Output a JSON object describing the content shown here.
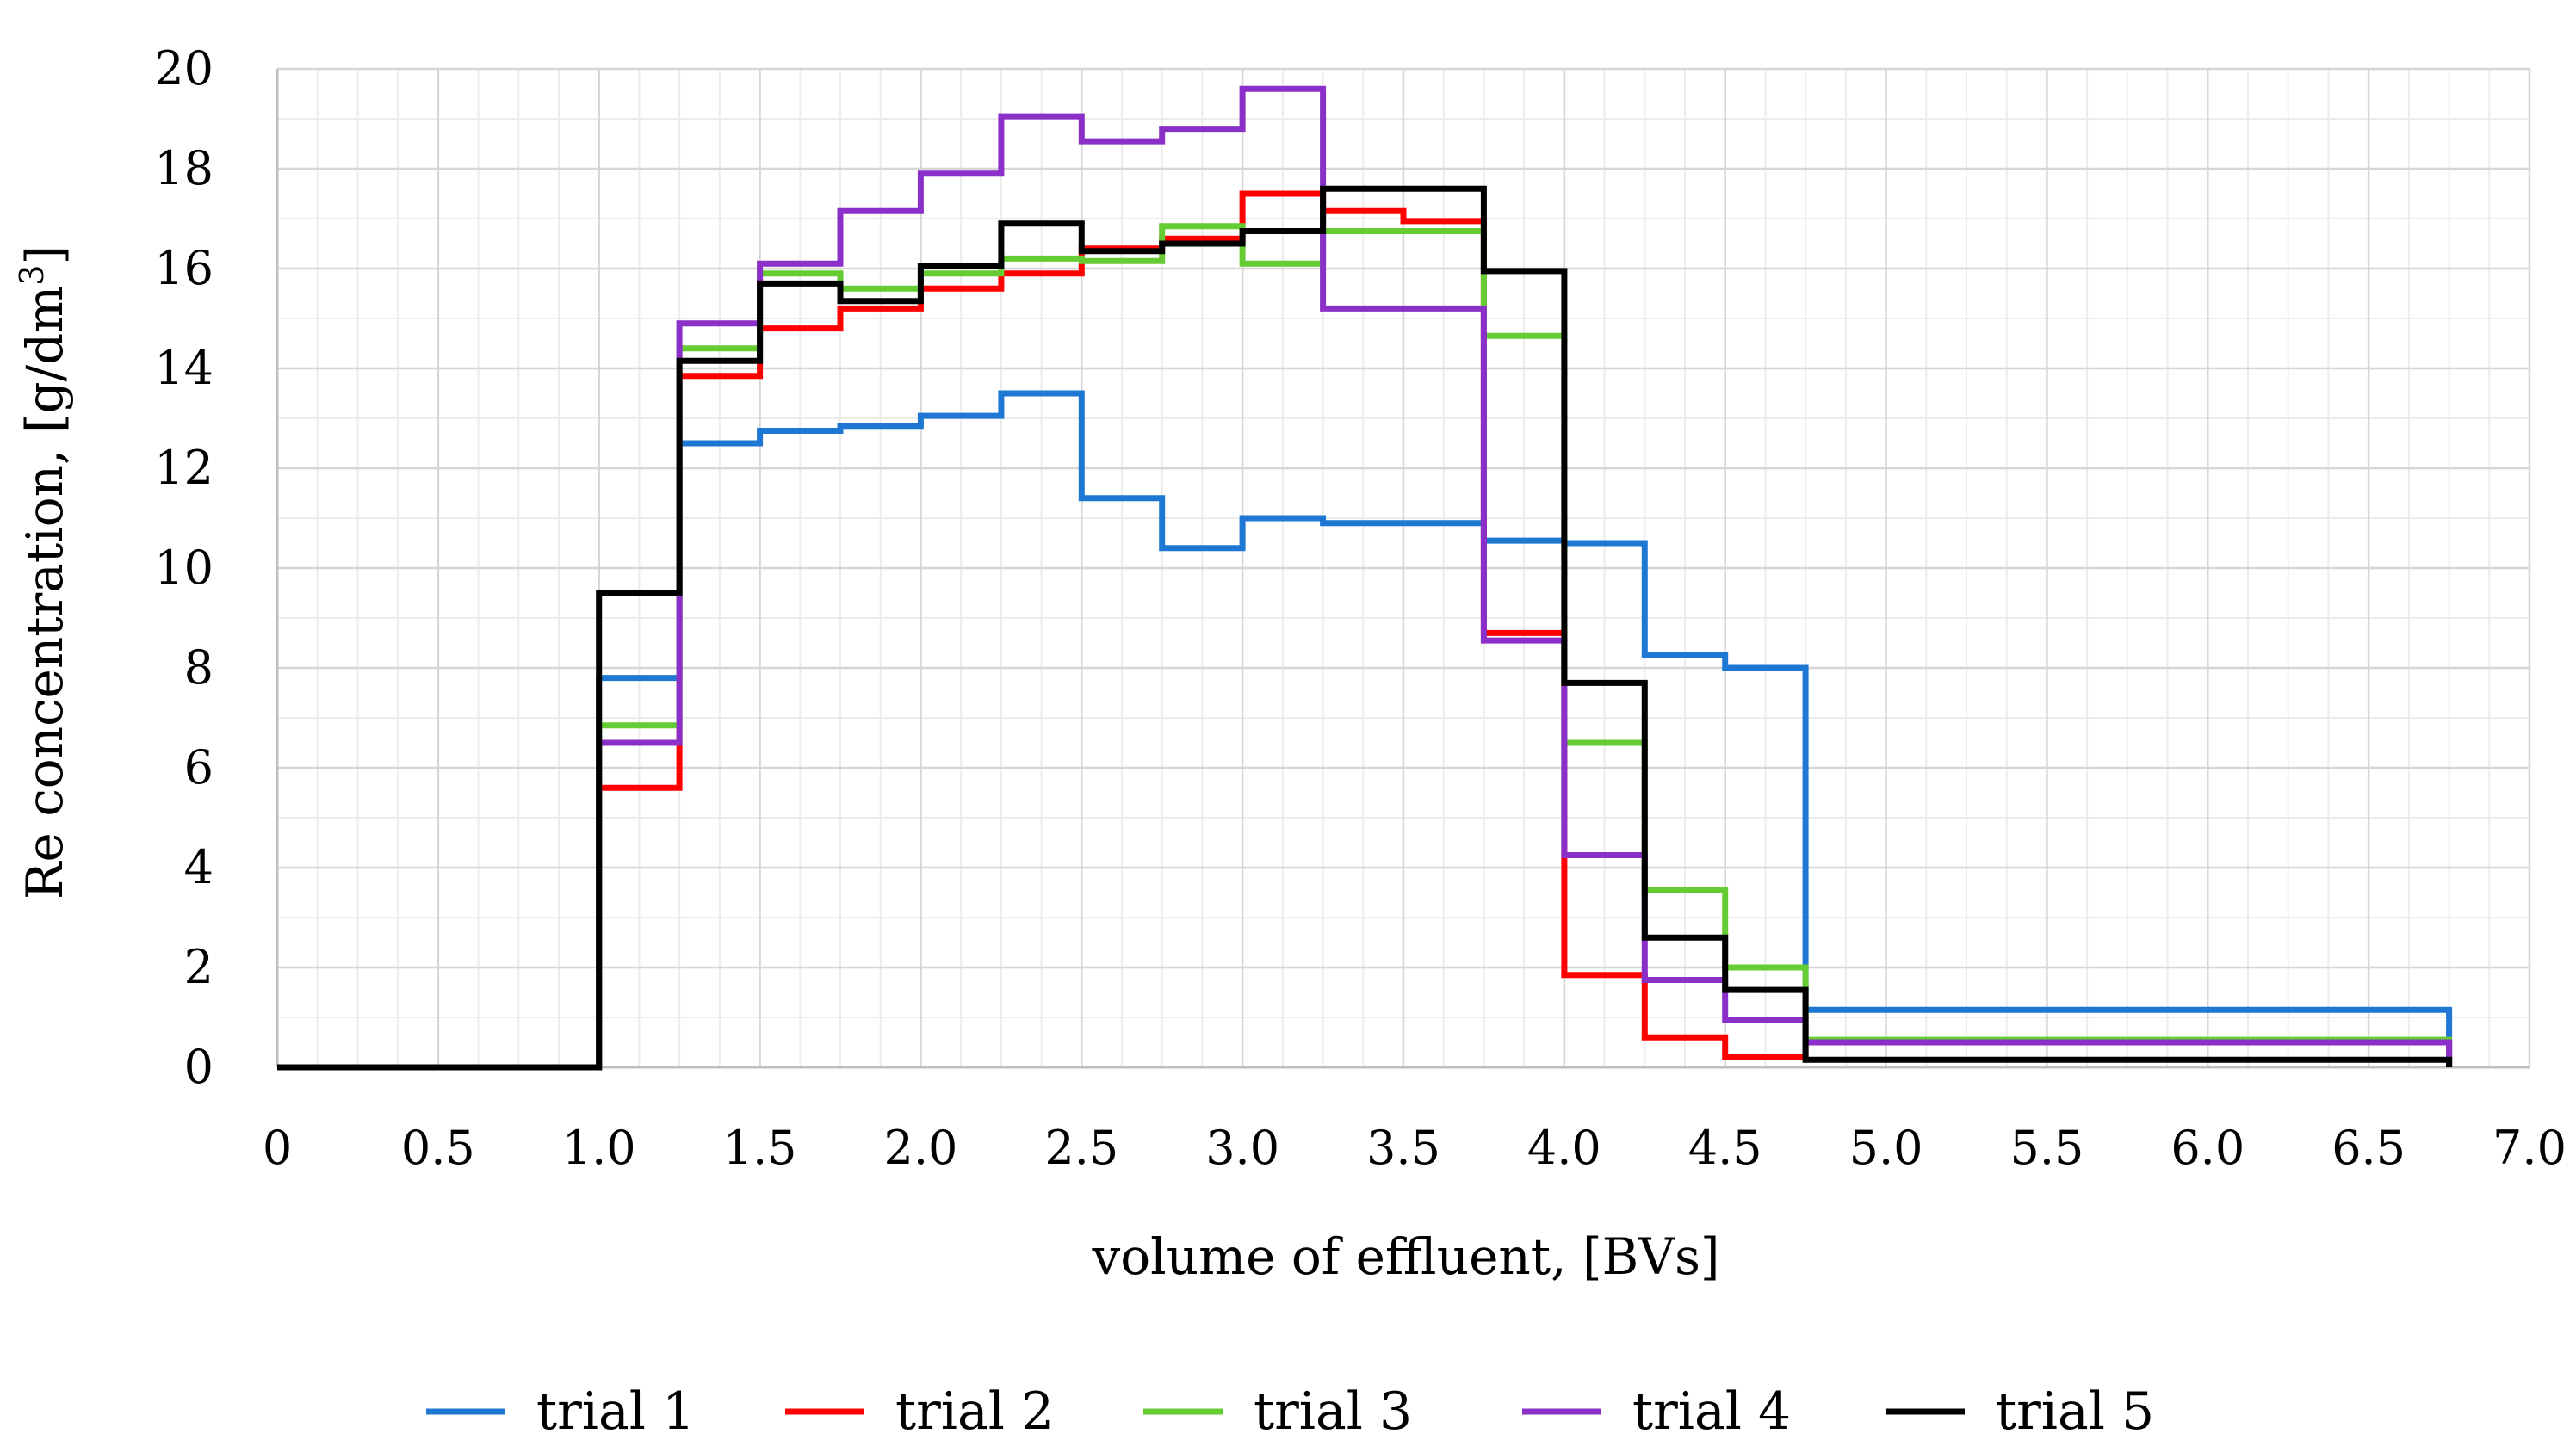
{
  "chart_data": {
    "type": "line",
    "step": true,
    "title": "",
    "xlabel": "volume of effluent, [BVs]",
    "ylabel_main": "Re concentration,  [g/dm",
    "ylabel_sup": "3",
    "ylabel_tail": "]",
    "xlim": [
      0,
      7.0
    ],
    "ylim": [
      0,
      20
    ],
    "grid": true,
    "legend_position": "bottom",
    "x_ticks": [
      {
        "value": 0,
        "label": "0"
      },
      {
        "value": 0.5,
        "label": "0.5"
      },
      {
        "value": 1.0,
        "label": "1.0"
      },
      {
        "value": 1.5,
        "label": "1.5"
      },
      {
        "value": 2.0,
        "label": "2.0"
      },
      {
        "value": 2.5,
        "label": "2.5"
      },
      {
        "value": 3.0,
        "label": "3.0"
      },
      {
        "value": 3.5,
        "label": "3.5"
      },
      {
        "value": 4.0,
        "label": "4.0"
      },
      {
        "value": 4.5,
        "label": "4.5"
      },
      {
        "value": 5.0,
        "label": "5.0"
      },
      {
        "value": 5.5,
        "label": "5.5"
      },
      {
        "value": 6.0,
        "label": "6.0"
      },
      {
        "value": 6.5,
        "label": "6.5"
      },
      {
        "value": 7.0,
        "label": "7.0"
      }
    ],
    "y_ticks": [
      {
        "value": 0,
        "label": "0"
      },
      {
        "value": 2,
        "label": "2"
      },
      {
        "value": 4,
        "label": "4"
      },
      {
        "value": 6,
        "label": "6"
      },
      {
        "value": 8,
        "label": "8"
      },
      {
        "value": 10,
        "label": "10"
      },
      {
        "value": 12,
        "label": "12"
      },
      {
        "value": 14,
        "label": "14"
      },
      {
        "value": 16,
        "label": "16"
      },
      {
        "value": 18,
        "label": "18"
      },
      {
        "value": 20,
        "label": "20"
      }
    ],
    "step_edges": [
      0,
      1.0,
      1.25,
      1.5,
      1.75,
      2.0,
      2.25,
      2.5,
      2.75,
      3.0,
      3.25,
      3.5,
      3.75,
      4.0,
      4.25,
      4.5,
      4.75,
      6.75
    ],
    "series": [
      {
        "name": "trial 1",
        "color": "#1f77d4",
        "values": [
          0,
          7.8,
          12.5,
          12.75,
          12.85,
          13.05,
          13.5,
          11.4,
          10.4,
          11.0,
          10.9,
          10.9,
          10.55,
          10.5,
          8.25,
          8.0,
          1.15
        ]
      },
      {
        "name": "trial 2",
        "color": "#ff0000",
        "values": [
          0,
          5.6,
          13.85,
          14.8,
          15.2,
          15.6,
          15.9,
          16.4,
          16.6,
          17.5,
          17.15,
          16.95,
          8.7,
          1.85,
          0.6,
          0.2,
          0.5
        ]
      },
      {
        "name": "trial 3",
        "color": "#66cc33",
        "values": [
          0,
          6.85,
          14.4,
          15.9,
          15.6,
          15.9,
          16.2,
          16.15,
          16.85,
          16.1,
          16.75,
          16.75,
          14.65,
          6.5,
          3.55,
          2.0,
          0.55
        ]
      },
      {
        "name": "trial 4",
        "color": "#8b2fc9",
        "values": [
          0,
          6.5,
          14.9,
          16.1,
          17.15,
          17.9,
          19.05,
          18.55,
          18.8,
          19.6,
          15.2,
          15.2,
          8.55,
          4.25,
          1.75,
          0.95,
          0.5
        ]
      },
      {
        "name": "trial 5",
        "color": "#000000",
        "values": [
          0,
          9.5,
          14.15,
          15.7,
          15.35,
          16.05,
          16.9,
          16.35,
          16.5,
          16.75,
          17.6,
          17.6,
          15.95,
          7.7,
          2.6,
          1.55,
          0.15
        ]
      }
    ]
  }
}
